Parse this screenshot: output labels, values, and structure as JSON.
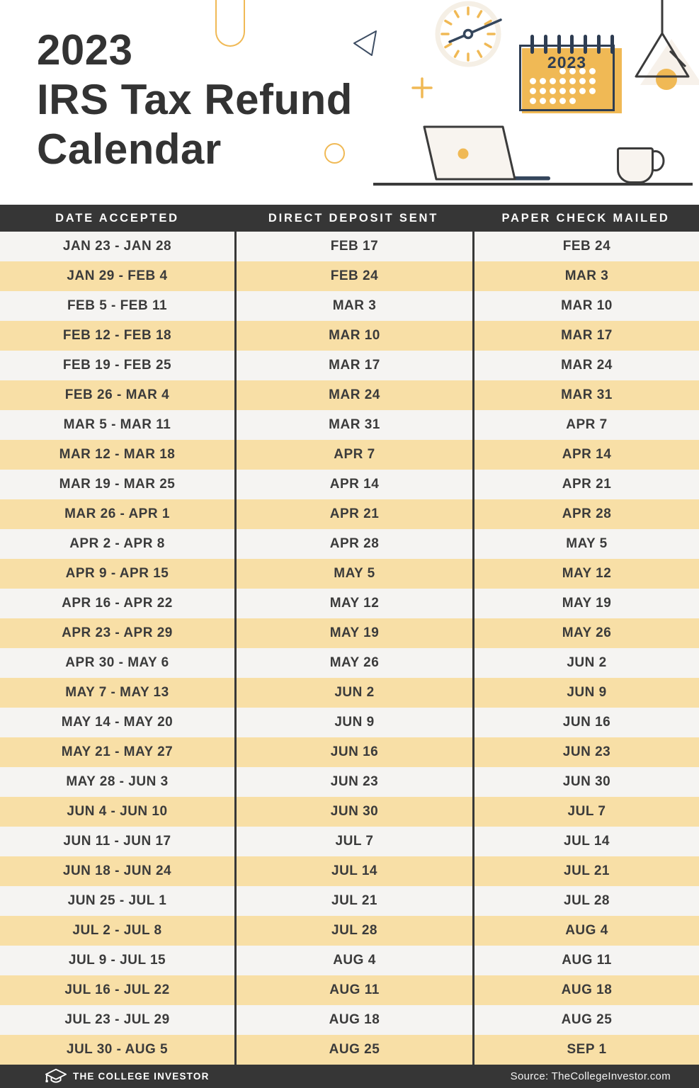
{
  "page_title": "2023 IRS Tax Refund Calendar",
  "hero": {
    "title_lines": [
      "2023",
      "IRS Tax Refund",
      "Calendar"
    ],
    "desk_calendar": {
      "year": "2023",
      "dot_rows": [
        "0001111",
        "1111111",
        "1111111",
        "1111100"
      ]
    },
    "decorations": [
      "u-shape",
      "paper-plane-triangle",
      "wall-clock",
      "plus-sign",
      "circle-outline",
      "desk-calendar",
      "pendant-lamp",
      "laptop",
      "coffee-mug",
      "desk-line"
    ]
  },
  "table": {
    "columns": [
      "DATE ACCEPTED",
      "DIRECT DEPOSIT SENT",
      "PAPER CHECK MAILED"
    ],
    "rows": [
      [
        "JAN 23 - JAN 28",
        "FEB 17",
        "FEB 24"
      ],
      [
        "JAN 29 - FEB 4",
        "FEB 24",
        "MAR 3"
      ],
      [
        "FEB 5 - FEB 11",
        "MAR 3",
        "MAR 10"
      ],
      [
        "FEB 12 - FEB 18",
        "MAR 10",
        "MAR 17"
      ],
      [
        "FEB 19 - FEB 25",
        "MAR 17",
        "MAR 24"
      ],
      [
        "FEB 26 - MAR 4",
        "MAR 24",
        "MAR 31"
      ],
      [
        "MAR 5 - MAR 11",
        "MAR 31",
        "APR 7"
      ],
      [
        "MAR 12 - MAR 18",
        "APR 7",
        "APR 14"
      ],
      [
        "MAR 19 - MAR 25",
        "APR 14",
        "APR 21"
      ],
      [
        "MAR 26 - APR 1",
        "APR 21",
        "APR 28"
      ],
      [
        "APR 2 - APR 8",
        "APR 28",
        "MAY 5"
      ],
      [
        "APR 9 - APR 15",
        "MAY 5",
        "MAY 12"
      ],
      [
        "APR 16 - APR 22",
        "MAY 12",
        "MAY 19"
      ],
      [
        "APR 23 - APR 29",
        "MAY 19",
        "MAY 26"
      ],
      [
        "APR 30 - MAY 6",
        "MAY 26",
        "JUN 2"
      ],
      [
        "MAY 7 - MAY 13",
        "JUN 2",
        "JUN 9"
      ],
      [
        "MAY 14 - MAY 20",
        "JUN 9",
        "JUN 16"
      ],
      [
        "MAY 21 - MAY 27",
        "JUN 16",
        "JUN 23"
      ],
      [
        "MAY 28 - JUN 3",
        "JUN 23",
        "JUN 30"
      ],
      [
        "JUN 4 - JUN 10",
        "JUN 30",
        "JUL 7"
      ],
      [
        "JUN 11 - JUN 17",
        "JUL 7",
        "JUL 14"
      ],
      [
        "JUN 18 - JUN 24",
        "JUL 14",
        "JUL 21"
      ],
      [
        "JUN 25 - JUL 1",
        "JUL 21",
        "JUL 28"
      ],
      [
        "JUL 2 - JUL 8",
        "JUL 28",
        "AUG 4"
      ],
      [
        "JUL 9 - JUL 15",
        "AUG 4",
        "AUG 11"
      ],
      [
        "JUL 16 - JUL 22",
        "AUG 11",
        "AUG 18"
      ],
      [
        "JUL 23 - JUL 29",
        "AUG 18",
        "AUG 25"
      ],
      [
        "JUL 30 - AUG 5",
        "AUG 25",
        "SEP 1"
      ]
    ]
  },
  "footer": {
    "brand": "THE COLLEGE INVESTOR",
    "source": "Source: TheCollegeInvestor.com"
  },
  "colors": {
    "accent_orange": "#f0b955",
    "row_orange": "#f8dfa6",
    "row_light": "#f5f4f2",
    "bar_dark": "#363636",
    "navy": "#2e3d52",
    "outline_dark": "#3b3b3b",
    "title_text": "#333333"
  }
}
